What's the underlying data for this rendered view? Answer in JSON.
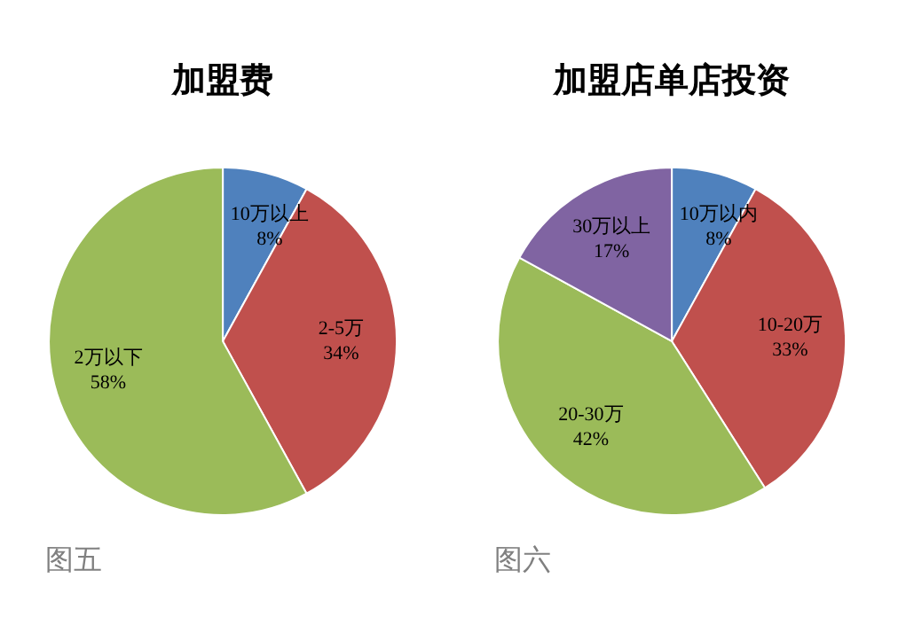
{
  "chart_data": [
    {
      "type": "pie",
      "title": "加盟费",
      "categories": [
        "10万以上",
        "2-5万",
        "2万以下"
      ],
      "values": [
        8,
        34,
        58
      ],
      "colors": [
        "#4f81bd",
        "#c0504d",
        "#9bbb59"
      ],
      "value_labels": [
        "8%",
        "34%",
        "58%"
      ],
      "annotations": [
        "图五"
      ]
    },
    {
      "type": "pie",
      "title": "加盟店单店投资",
      "categories": [
        "10万以内",
        "10-20万",
        "20-30万",
        "30万以上"
      ],
      "values": [
        8,
        33,
        42,
        17
      ],
      "colors": [
        "#4f81bd",
        "#c0504d",
        "#9bbb59",
        "#8064a2"
      ],
      "value_labels": [
        "8%",
        "33%",
        "42%",
        "17%"
      ],
      "annotations": [
        "图六"
      ]
    }
  ]
}
